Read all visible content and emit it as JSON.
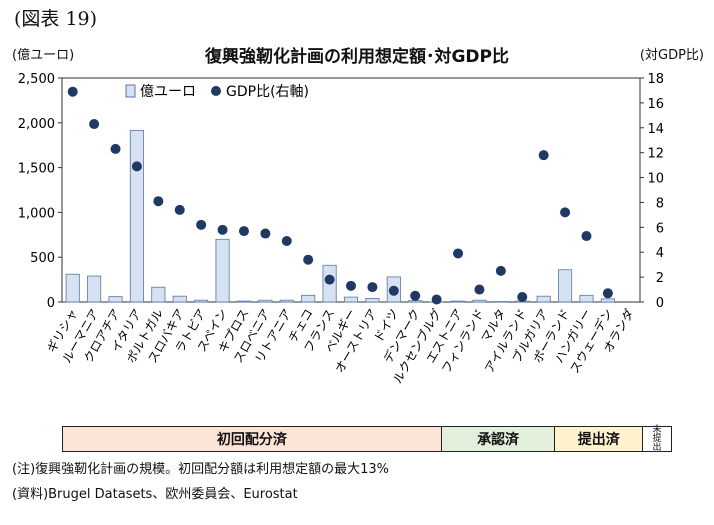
{
  "figure_label": "(図表 19)",
  "chart_data": {
    "type": "bar+scatter",
    "title": "復興強靭化計画の利用想定額･対GDP比",
    "left_axis_unit": "(億ユーロ)",
    "right_axis_unit": "(対GDP比)",
    "left_ylim": [
      0,
      2500
    ],
    "left_ticks": [
      "0",
      "500",
      "1,000",
      "1,500",
      "2,000",
      "2,500"
    ],
    "left_tick_values": [
      0,
      500,
      1000,
      1500,
      2000,
      2500
    ],
    "right_ylim": [
      0,
      18
    ],
    "right_ticks": [
      "0",
      "2",
      "4",
      "6",
      "8",
      "10",
      "12",
      "14",
      "16",
      "18"
    ],
    "right_tick_values": [
      0,
      2,
      4,
      6,
      8,
      10,
      12,
      14,
      16,
      18
    ],
    "categories": [
      "ギリシャ",
      "ルーマニア",
      "クロアチア",
      "イタリア",
      "ポルトガル",
      "スロバキア",
      "ラトビア",
      "スペイン",
      "キプロス",
      "スロベニア",
      "リトアニア",
      "チェコ",
      "フランス",
      "ベルギー",
      "オーストリア",
      "ドイツ",
      "デンマーク",
      "ルクセンブルグ",
      "エストニア",
      "フィンランド",
      "マルタ",
      "アイルランド",
      "ブルガリア",
      "ポーランド",
      "ハンガリー",
      "スウェーデン",
      "オランダ"
    ],
    "series": [
      {
        "name": "億ユーロ",
        "type": "bar",
        "axis": "left",
        "values": [
          310,
          290,
          60,
          1915,
          165,
          65,
          20,
          700,
          10,
          20,
          20,
          75,
          410,
          55,
          40,
          280,
          15,
          1,
          10,
          20,
          5,
          10,
          65,
          360,
          75,
          35,
          0
        ]
      },
      {
        "name": "GDP比(右軸)",
        "type": "scatter",
        "axis": "right",
        "values": [
          16.9,
          14.3,
          12.3,
          10.9,
          8.1,
          7.4,
          6.2,
          5.8,
          5.7,
          5.5,
          4.9,
          3.4,
          1.8,
          1.3,
          1.2,
          0.9,
          0.5,
          0.2,
          3.9,
          1.0,
          2.5,
          0.4,
          11.8,
          7.2,
          5.3,
          0.7,
          null
        ]
      }
    ],
    "legend_position": "top-left",
    "colors": {
      "bar_fill": "#d6e1f2",
      "bar_stroke": "#5a76a8",
      "marker": "#1f3864"
    }
  },
  "status_segments": [
    {
      "label": "初回配分済",
      "color": "#fbe3d6",
      "from": 0,
      "to": 16
    },
    {
      "label": "承認済",
      "color": "#e2efda",
      "from": 17,
      "to": 20
    },
    {
      "label": "提出済",
      "color": "#fff2cc",
      "from": 21,
      "to": 24
    },
    {
      "label": "未提出",
      "color": "#ffffff",
      "from": 25,
      "to": 25
    }
  ],
  "notes": {
    "note1": "(注)復興強靭化計画の規模。初回配分額は利用想定額の最大13%",
    "note2": "(資料)Brugel Datasets、欧州委員会、Eurostat"
  }
}
